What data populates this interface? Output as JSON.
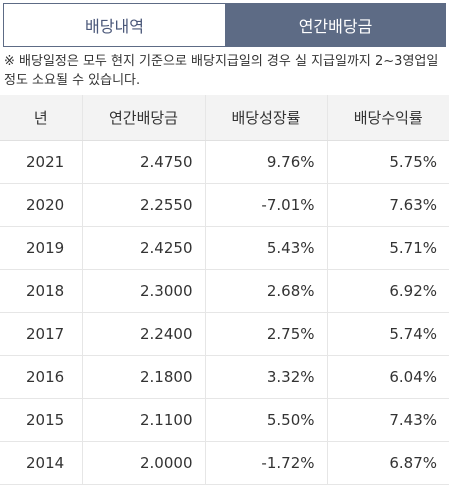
{
  "tabs": [
    {
      "label": "배당내역",
      "active": false
    },
    {
      "label": "연간배당금",
      "active": true
    }
  ],
  "notice": "※ 배당일정은 모두 현지 기준으로 배당지급일의 경우 실 지급일까지 2~3영업일 정도 소요될 수 있습니다.",
  "table": {
    "headers": [
      "년",
      "연간배당금",
      "배당성장률",
      "배당수익률"
    ],
    "rows": [
      {
        "year": "2021",
        "dividend": "2.4750",
        "growth": "9.76%",
        "yield": "5.75%"
      },
      {
        "year": "2020",
        "dividend": "2.2550",
        "growth": "-7.01%",
        "yield": "7.63%"
      },
      {
        "year": "2019",
        "dividend": "2.4250",
        "growth": "5.43%",
        "yield": "5.71%"
      },
      {
        "year": "2018",
        "dividend": "2.3000",
        "growth": "2.68%",
        "yield": "6.92%"
      },
      {
        "year": "2017",
        "dividend": "2.2400",
        "growth": "2.75%",
        "yield": "5.74%"
      },
      {
        "year": "2016",
        "dividend": "2.1800",
        "growth": "3.32%",
        "yield": "6.04%"
      },
      {
        "year": "2015",
        "dividend": "2.1100",
        "growth": "5.50%",
        "yield": "7.43%"
      },
      {
        "year": "2014",
        "dividend": "2.0000",
        "growth": "-1.72%",
        "yield": "6.87%"
      }
    ]
  },
  "colors": {
    "tab_active_bg": "#5d6b85",
    "positive": "#c2327a",
    "negative": "#2f5aa8",
    "header_bg": "#f3f3f3"
  }
}
